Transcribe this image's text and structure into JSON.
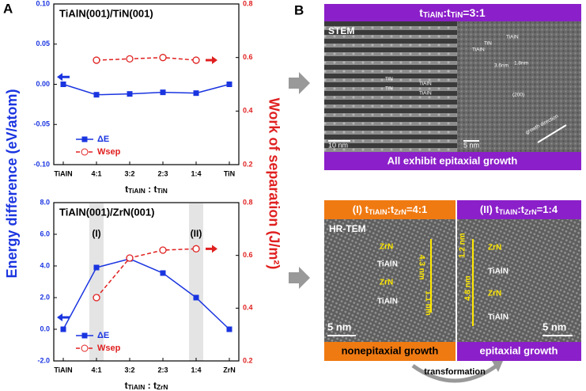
{
  "panel_labels": [
    "A",
    "B"
  ],
  "axis_labels": {
    "left": "Energy difference (eV/atom)",
    "right": "Work of separation (J/m²)"
  },
  "chart_data": [
    {
      "type": "line",
      "title": "TiAlN(001)/TiN(001)",
      "x_label": [
        "t",
        "TiAlN",
        " : t",
        "TiN"
      ],
      "categories": [
        "TiAlN",
        "4:1",
        "3:2",
        "2:3",
        "1:4",
        "TiN"
      ],
      "ylim": [
        -0.1,
        0.1
      ],
      "yticks": [
        {
          "value": -0.1,
          "label": "-0.10"
        },
        {
          "value": -0.05,
          "label": "-0.05"
        },
        {
          "value": 0,
          "label": "0.00"
        },
        {
          "value": 0.05,
          "label": "0.05"
        },
        {
          "value": 0.1,
          "label": "0.10"
        }
      ],
      "y2lim": [
        0.2,
        0.8
      ],
      "y2ticks": [
        0.2,
        0.4,
        0.6,
        0.8
      ],
      "series": [
        {
          "name": "ΔE",
          "color": "#1a35e0",
          "marker": "square",
          "values": [
            0,
            -0.013,
            -0.012,
            -0.01,
            -0.011,
            0
          ]
        },
        {
          "name": "Wsep",
          "color": "#e02020",
          "marker": "circle",
          "dashed": true,
          "axis": "y2",
          "values": [
            null,
            0.59,
            0.595,
            0.6,
            0.59,
            null
          ]
        }
      ],
      "legend": "lower left"
    },
    {
      "type": "line",
      "title": "TiAlN(001)/ZrN(001)",
      "x_label": [
        "t",
        "TiAlN",
        " : t",
        "ZrN"
      ],
      "categories": [
        "TiAlN",
        "4:1",
        "3:2",
        "2:3",
        "1:4",
        "ZrN"
      ],
      "ylim": [
        -2,
        8
      ],
      "yticks": [
        {
          "value": -2,
          "label": "-2.0"
        },
        {
          "value": 0,
          "label": "0.0"
        },
        {
          "value": 2,
          "label": "2.0"
        },
        {
          "value": 4,
          "label": "4.0"
        },
        {
          "value": 6,
          "label": "6.0"
        },
        {
          "value": 8,
          "label": "8.0"
        }
      ],
      "y2lim": [
        0.2,
        0.8
      ],
      "y2ticks": [
        0.2,
        0.4,
        0.6,
        0.8
      ],
      "series": [
        {
          "name": "ΔE",
          "color": "#1a35e0",
          "marker": "square",
          "values": [
            0,
            3.9,
            4.45,
            3.55,
            2.0,
            0
          ]
        },
        {
          "name": "Wsep",
          "color": "#e02020",
          "marker": "circle",
          "dashed": true,
          "axis": "y2",
          "values": [
            null,
            0.44,
            0.59,
            0.62,
            0.625,
            null
          ]
        }
      ],
      "annotations": [
        {
          "text": "(I)",
          "category": "4:1"
        },
        {
          "text": "(II)",
          "category": "1:4"
        }
      ],
      "legend": "lower left"
    }
  ],
  "panel_b": {
    "top": {
      "header": [
        "t",
        "TiAlN",
        ":t",
        "TiN",
        "=3:1"
      ],
      "image_label": "STEM",
      "labels": [
        "TiN",
        "TiAlN",
        "TiN",
        "TiAlN",
        "10 nm",
        "TiN",
        "TiAlN",
        "TiAlN",
        "3.6nm",
        "1.8nm",
        "(200)",
        "5 nm",
        "growth direction"
      ],
      "footer": "All exhibit epitaxial growth"
    },
    "bottom": {
      "left_header": [
        "(I) t",
        "TiAlN",
        ":t",
        "ZrN",
        "=4:1"
      ],
      "right_header": [
        "(II) t",
        "TiAlN",
        ":t",
        "ZrN",
        "=1:4"
      ],
      "image_label": "HR-TEM",
      "left_labels": [
        "ZrN",
        "TiAlN",
        "ZrN",
        "TiAlN",
        "4.3 nm",
        "1.1 nm",
        "5 nm"
      ],
      "right_labels": [
        "ZrN",
        "TiAlN",
        "ZrN",
        "TiAlN",
        "1.2 nm",
        "4.8 nm",
        "5 nm"
      ],
      "left_footer": "nonepitaxial growth",
      "right_footer": "epitaxial growth",
      "transition": "transformation"
    }
  }
}
